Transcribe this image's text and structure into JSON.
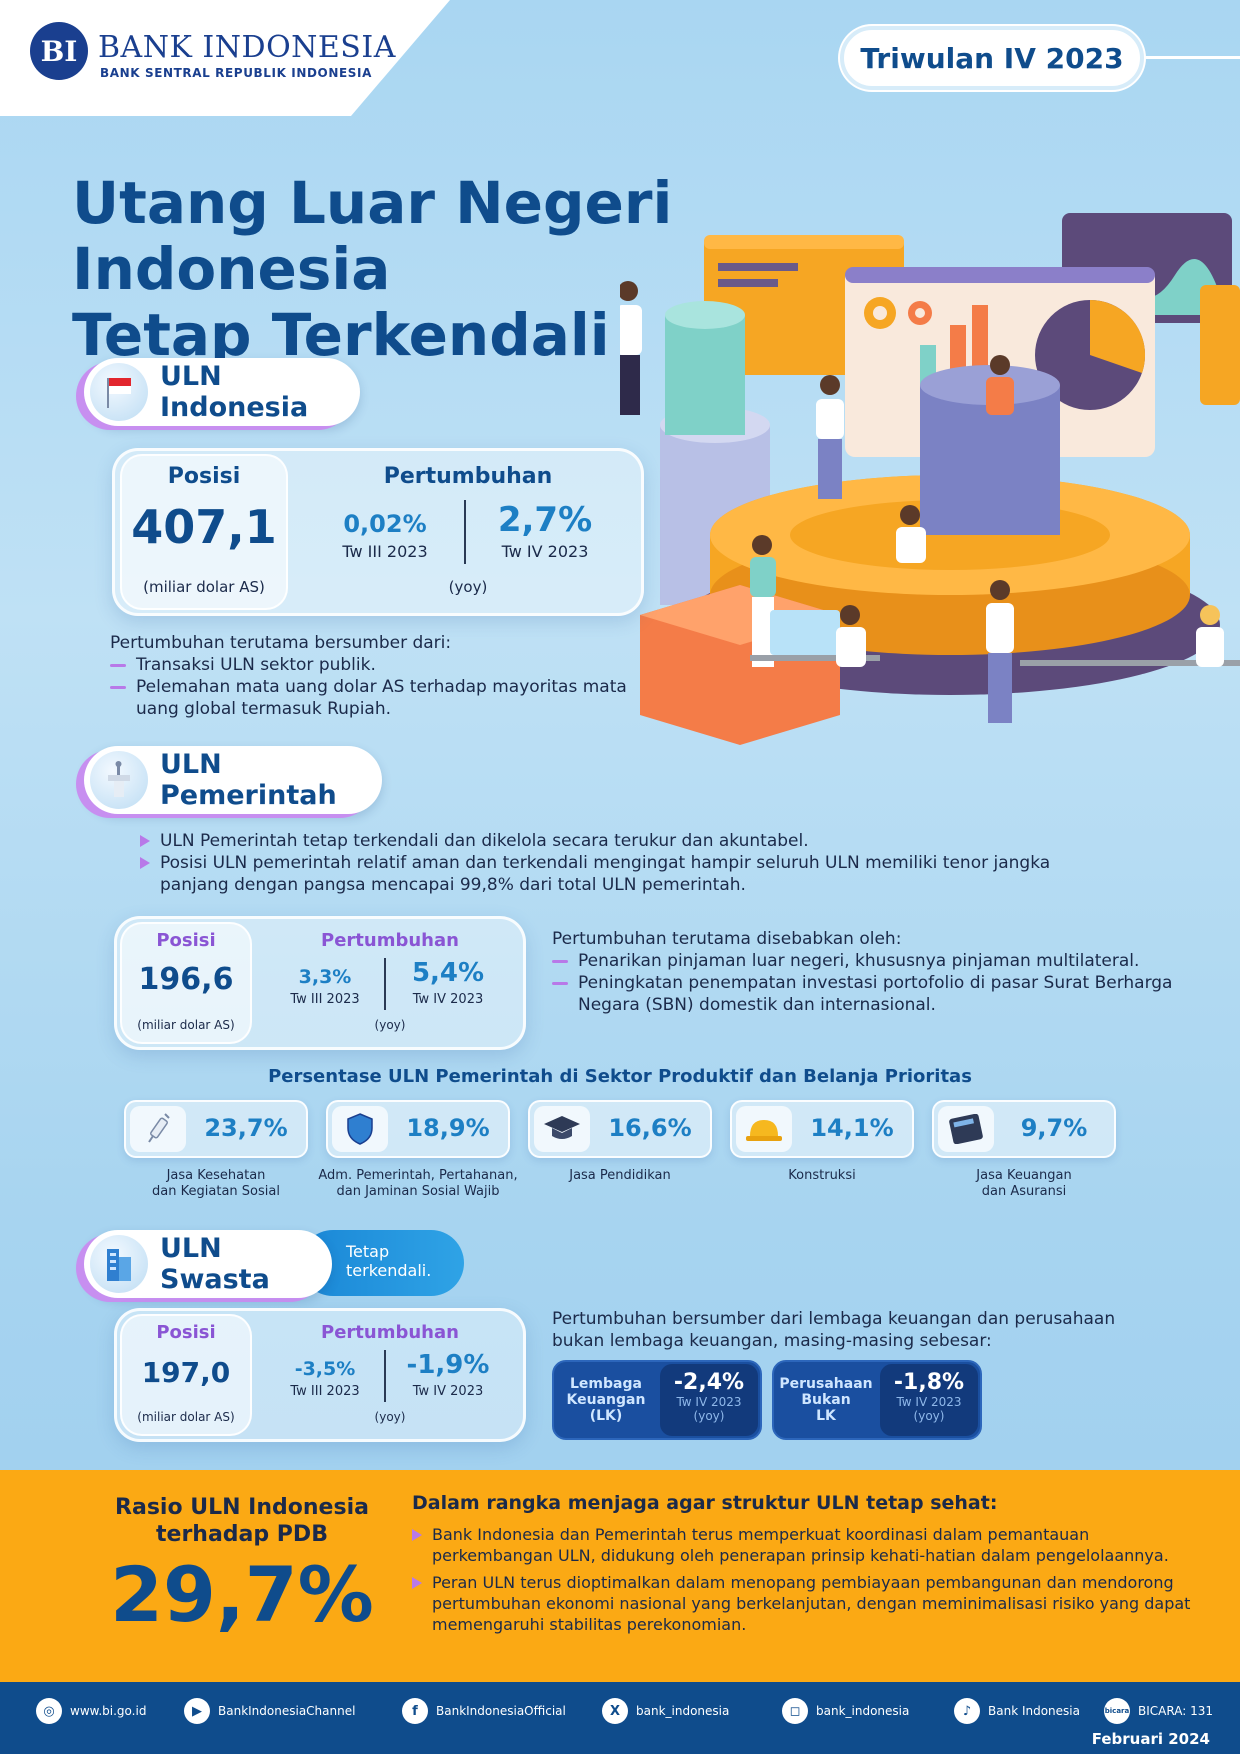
{
  "header": {
    "logo_mark": "BI",
    "logo_name": "BANK INDONESIA",
    "logo_subtitle": "BANK SENTRAL REPUBLIK INDONESIA",
    "period_badge": "Triwulan IV 2023"
  },
  "title": {
    "line1": "Utang Luar Negeri Indonesia",
    "line2": "Tetap Terkendali"
  },
  "uln_indonesia": {
    "section_label": "ULN Indonesia",
    "position_label": "Posisi",
    "position_value": "407,1",
    "position_unit": "(miliar dolar AS)",
    "growth_label": "Pertumbuhan",
    "growth_prev_value": "0,02%",
    "growth_prev_period": "Tw III 2023",
    "growth_curr_value": "2,7%",
    "growth_curr_period": "Tw IV 2023",
    "growth_unit": "(yoy)",
    "sources_intro": "Pertumbuhan terutama bersumber dari:",
    "sources": [
      "Transaksi ULN sektor publik.",
      "Pelemahan mata uang dolar AS terhadap mayoritas mata uang global termasuk Rupiah."
    ]
  },
  "uln_pemerintah": {
    "section_label": "ULN Pemerintah",
    "points": [
      "ULN Pemerintah tetap terkendali dan dikelola secara terukur dan akuntabel.",
      "Posisi ULN pemerintah relatif aman dan terkendali mengingat hampir seluruh ULN memiliki tenor jangka panjang dengan pangsa mencapai 99,8% dari total ULN pemerintah."
    ],
    "position_label": "Posisi",
    "position_value": "196,6",
    "position_unit": "(miliar dolar AS)",
    "growth_label": "Pertumbuhan",
    "growth_prev_value": "3,3%",
    "growth_prev_period": "Tw III 2023",
    "growth_curr_value": "5,4%",
    "growth_curr_period": "Tw IV 2023",
    "growth_unit": "(yoy)",
    "causes_intro": "Pertumbuhan terutama disebabkan oleh:",
    "causes": [
      "Penarikan pinjaman luar negeri, khususnya pinjaman multilateral.",
      "Peningkatan penempatan investasi portofolio di pasar Surat Berharga Negara (SBN) domestik dan internasional."
    ],
    "sectors_title": "Persentase ULN Pemerintah di Sektor Produktif dan Belanja Prioritas",
    "sectors": [
      {
        "value": "23,7%",
        "label_1": "Jasa Kesehatan",
        "label_2": "dan Kegiatan Sosial",
        "icon": "syringe-icon"
      },
      {
        "value": "18,9%",
        "label_1": "Adm. Pemerintah, Pertahanan,",
        "label_2": "dan Jaminan Sosial Wajib",
        "icon": "shield-icon"
      },
      {
        "value": "16,6%",
        "label_1": "Jasa Pendidikan",
        "label_2": "",
        "icon": "graduation-cap-icon"
      },
      {
        "value": "14,1%",
        "label_1": "Konstruksi",
        "label_2": "",
        "icon": "hard-hat-icon"
      },
      {
        "value": "9,7%",
        "label_1": "Jasa Keuangan",
        "label_2": "dan Asuransi",
        "icon": "calculator-icon"
      }
    ]
  },
  "uln_swasta": {
    "section_label": "ULN Swasta",
    "tag_line1": "Tetap",
    "tag_line2": "terkendali.",
    "position_label": "Posisi",
    "position_value": "197,0",
    "position_unit": "(miliar dolar AS)",
    "growth_label": "Pertumbuhan",
    "growth_prev_value": "-3,5%",
    "growth_prev_period": "Tw III 2023",
    "growth_curr_value": "-1,9%",
    "growth_curr_period": "Tw IV 2023",
    "growth_unit": "(yoy)",
    "desc": "Pertumbuhan bersumber dari lembaga keuangan dan perusahaan bukan lembaga keuangan, masing-masing sebesar:",
    "lk": {
      "label_1": "Lembaga",
      "label_2": "Keuangan",
      "label_3": "(LK)",
      "value": "-2,4%",
      "period": "Tw IV 2023",
      "unit": "(yoy)"
    },
    "non_lk": {
      "label_1": "Perusahaan",
      "label_2": "Bukan",
      "label_3": "LK",
      "value": "-1,8%",
      "period": "Tw IV 2023",
      "unit": "(yoy)"
    }
  },
  "ratio": {
    "label_1": "Rasio ULN Indonesia",
    "label_2": "terhadap PDB",
    "value": "29,7%",
    "policy_title": "Dalam rangka menjaga agar struktur ULN tetap sehat:",
    "policies": [
      "Bank Indonesia dan Pemerintah terus memperkuat koordinasi dalam pemantauan perkembangan ULN, didukung oleh penerapan prinsip kehati-hatian dalam pengelolaannya.",
      "Peran ULN terus dioptimalkan dalam menopang pembiayaan pembangunan dan mendorong pertumbuhan ekonomi nasional yang berkelanjutan, dengan meminimalisasi risiko yang dapat memengaruhi stabilitas perekonomian."
    ]
  },
  "footer": {
    "website": "www.bi.go.id",
    "youtube": "BankIndonesiaChannel",
    "facebook": "BankIndonesiaOfficial",
    "x": "bank_indonesia",
    "instagram": "bank_indonesia",
    "tiktok": "Bank Indonesia",
    "bicara_logo": "bicara",
    "bicara": "BICARA: 131",
    "date": "Februari 2024"
  },
  "colors": {
    "primary_blue": "#0f4c8c",
    "accent_blue": "#1d7fc4",
    "purple_accent": "#b879e8",
    "yellow_band": "#fba914"
  }
}
